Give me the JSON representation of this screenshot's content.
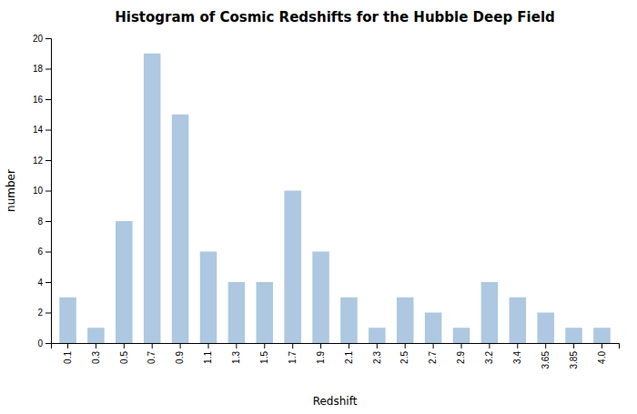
{
  "chart_data": {
    "type": "bar",
    "title": "Histogram of Cosmic Redshifts for the Hubble Deep Field",
    "x_label": "Redshift",
    "y_label": "number",
    "categories": [
      "0.1",
      "0.3",
      "0.5",
      "0.7",
      "0.9",
      "1.1",
      "1.3",
      "1.5",
      "1.7",
      "1.9",
      "2.1",
      "2.3",
      "2.5",
      "2.7",
      "2.9",
      "3.2",
      "3.4",
      "3.65",
      "3.85",
      "4.0"
    ],
    "values": [
      3,
      1,
      8,
      19,
      15,
      6,
      4,
      4,
      10,
      6,
      3,
      1,
      3,
      2,
      1,
      4,
      3,
      2,
      1,
      1
    ],
    "color": "#adc8e0",
    "ylim": [
      0,
      20
    ],
    "yticks": [
      0,
      2,
      4,
      6,
      8,
      10,
      12,
      14,
      16,
      18,
      20
    ],
    "grid": false
  }
}
